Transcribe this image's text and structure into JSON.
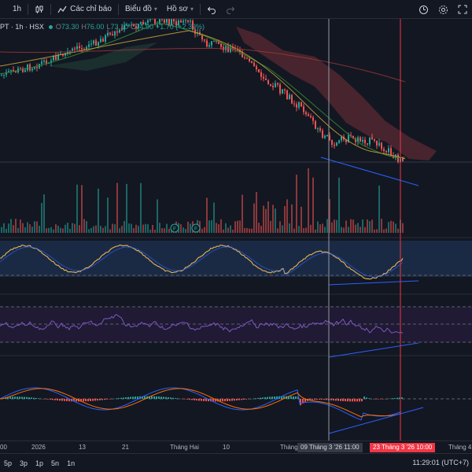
{
  "toolbar": {
    "interval": "1h",
    "indicators_label": "Các chỉ báo",
    "chart_type_label": "Biểu đồ",
    "profile_label": "Hồ sơ"
  },
  "legend": {
    "symbol": "PT · 1h · HSX",
    "open_label": "O",
    "open": "73.30",
    "high_label": "H",
    "high": "76.00",
    "low_label": "L",
    "low": "73.10",
    "close_label": "C",
    "close": "74.90",
    "change": "+1.70 (+2.32%)"
  },
  "time_axis": {
    "ticks": [
      "00",
      "2026",
      "13",
      "21",
      "Tháng Hai",
      "10",
      "Tháng",
      "Tháng 4"
    ],
    "crosshair_left": "09 Tháng 3 '26   11:00",
    "crosshair_right": "23 Tháng 3 '26   10:00"
  },
  "bottombar": {
    "ranges": [
      "5p",
      "3p",
      "1p",
      "5n",
      "1n"
    ],
    "clock": "11:29:01 (UTC+7)"
  },
  "markers": [
    "F",
    "F"
  ],
  "colors": {
    "background": "#131722",
    "up": "#26a69a",
    "down": "#ef5350",
    "crosshair_right": "#f23645",
    "trendline": "#2962ff",
    "osc_line": "#e5b653",
    "rsi_line": "#7e57c2",
    "macd_line": "#2962ff",
    "signal_line": "#ff6d00"
  }
}
